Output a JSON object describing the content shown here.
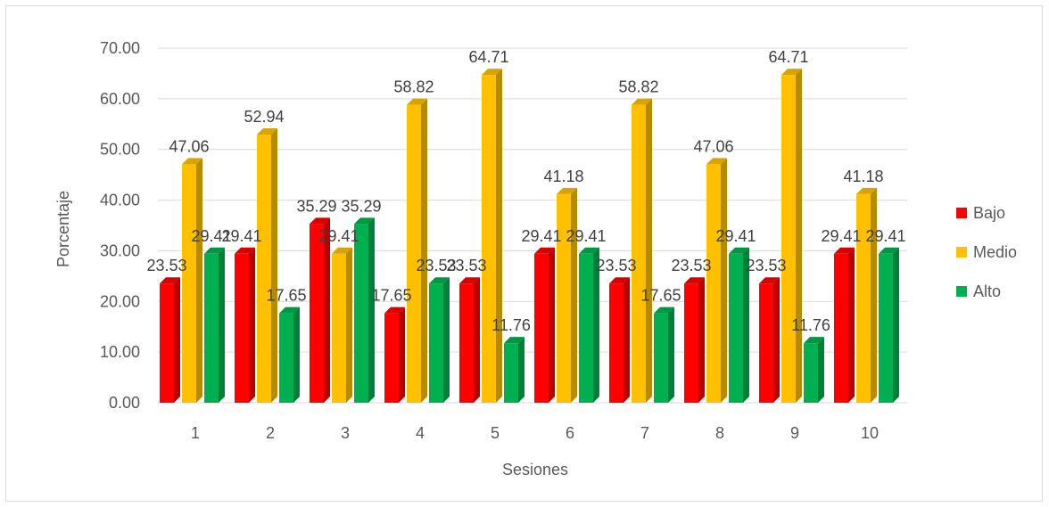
{
  "chart_data": {
    "type": "bar",
    "title": "",
    "xlabel": "Sesiones",
    "ylabel": "Porcentaje",
    "categories": [
      "1",
      "2",
      "3",
      "4",
      "5",
      "6",
      "7",
      "8",
      "9",
      "10"
    ],
    "ylim": [
      0,
      70
    ],
    "yticks": [
      "0.00",
      "10.00",
      "20.00",
      "30.00",
      "40.00",
      "50.00",
      "60.00",
      "70.00"
    ],
    "grid": true,
    "legend_position": "right",
    "series": [
      {
        "name": "Bajo",
        "color": "#ff0000",
        "values": [
          23.53,
          29.41,
          35.29,
          17.65,
          23.53,
          29.41,
          23.53,
          23.53,
          23.53,
          29.41
        ],
        "labels": [
          "23.53",
          "29.41",
          "35.29",
          "17.65",
          "23.53",
          "29.41",
          "23.53",
          "23.53",
          "23.53",
          "29.41"
        ]
      },
      {
        "name": "Medio",
        "color": "#ffc000",
        "values": [
          47.06,
          52.94,
          29.41,
          58.82,
          64.71,
          41.18,
          58.82,
          47.06,
          64.71,
          41.18
        ],
        "labels": [
          "47.06",
          "52.94",
          "29.41",
          "58.82",
          "64.71",
          "41.18",
          "58.82",
          "47.06",
          "64.71",
          "41.18"
        ]
      },
      {
        "name": "Alto",
        "color": "#00b050",
        "values": [
          29.41,
          17.65,
          35.29,
          23.53,
          11.76,
          29.41,
          17.65,
          29.41,
          11.76,
          29.41
        ],
        "labels": [
          "29.41",
          "17.65",
          "35.29",
          "23.53",
          "11.76",
          "29.41",
          "17.65",
          "29.41",
          "11.76",
          "29.41"
        ]
      }
    ]
  }
}
